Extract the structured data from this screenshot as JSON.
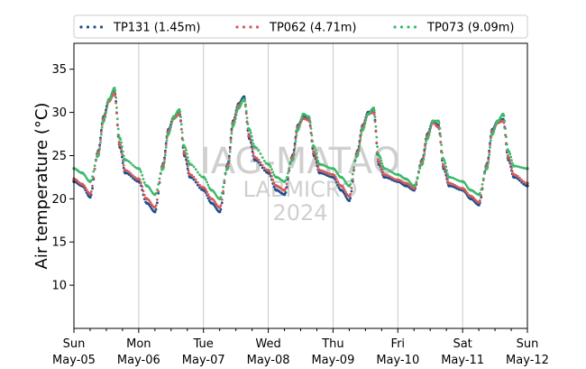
{
  "chart_data": {
    "type": "scatter",
    "ylabel": "Air temperature (°C)",
    "ylim": [
      5,
      38
    ],
    "y_ticks": [
      10,
      15,
      20,
      25,
      30,
      35
    ],
    "xlim": [
      "2024-05-05",
      "2024-05-12"
    ],
    "x_ticks": [
      {
        "day": "Sun",
        "date": "May-05",
        "x": "2024-05-05"
      },
      {
        "day": "Mon",
        "date": "May-06",
        "x": "2024-05-06"
      },
      {
        "day": "Tue",
        "date": "May-07",
        "x": "2024-05-07"
      },
      {
        "day": "Wed",
        "date": "May-08",
        "x": "2024-05-08"
      },
      {
        "day": "Thu",
        "date": "May-09",
        "x": "2024-05-09"
      },
      {
        "day": "Fri",
        "date": "May-10",
        "x": "2024-05-10"
      },
      {
        "day": "Sat",
        "date": "May-11",
        "x": "2024-05-11"
      },
      {
        "day": "Sun",
        "date": "May-12",
        "x": "2024-05-12"
      }
    ],
    "grid": "vertical",
    "legend_position": "top",
    "watermark": [
      "IAG-MATAO",
      "LABMICRO",
      "2024"
    ],
    "series": [
      {
        "name": "TP131 (1.45m)",
        "color": "#1f4e8c",
        "points": [
          [
            "2024-05-05T00:00",
            22.0
          ],
          [
            "2024-05-05T03:00",
            21.5
          ],
          [
            "2024-05-05T06:00",
            20.2
          ],
          [
            "2024-05-05T09:00",
            25.5
          ],
          [
            "2024-05-05T11:00",
            29.5
          ],
          [
            "2024-05-05T13:00",
            31.5
          ],
          [
            "2024-05-05T15:00",
            32.5
          ],
          [
            "2024-05-05T17:00",
            26.0
          ],
          [
            "2024-05-05T19:00",
            23.0
          ],
          [
            "2024-05-06T00:00",
            22.0
          ],
          [
            "2024-05-06T03:00",
            19.5
          ],
          [
            "2024-05-06T06:00",
            18.5
          ],
          [
            "2024-05-06T09:00",
            24.0
          ],
          [
            "2024-05-06T11:00",
            28.0
          ],
          [
            "2024-05-06T13:00",
            29.5
          ],
          [
            "2024-05-06T15:00",
            30.0
          ],
          [
            "2024-05-06T17:00",
            25.0
          ],
          [
            "2024-05-06T19:00",
            22.5
          ],
          [
            "2024-05-07T00:00",
            21.0
          ],
          [
            "2024-05-07T03:00",
            19.5
          ],
          [
            "2024-05-07T06:00",
            18.5
          ],
          [
            "2024-05-07T09:00",
            24.0
          ],
          [
            "2024-05-07T11:00",
            29.0
          ],
          [
            "2024-05-07T13:00",
            31.0
          ],
          [
            "2024-05-07T15:00",
            31.8
          ],
          [
            "2024-05-07T17:00",
            27.0
          ],
          [
            "2024-05-07T19:00",
            24.5
          ],
          [
            "2024-05-08T00:00",
            23.0
          ],
          [
            "2024-05-08T03:00",
            21.0
          ],
          [
            "2024-05-08T06:00",
            20.5
          ],
          [
            "2024-05-08T09:00",
            25.0
          ],
          [
            "2024-05-08T11:00",
            28.5
          ],
          [
            "2024-05-08T13:00",
            29.5
          ],
          [
            "2024-05-08T15:00",
            29.3
          ],
          [
            "2024-05-08T17:00",
            25.0
          ],
          [
            "2024-05-08T19:00",
            23.0
          ],
          [
            "2024-05-09T00:00",
            22.5
          ],
          [
            "2024-05-09T03:00",
            21.0
          ],
          [
            "2024-05-09T06:00",
            19.8
          ],
          [
            "2024-05-09T09:00",
            25.5
          ],
          [
            "2024-05-09T11:00",
            28.5
          ],
          [
            "2024-05-09T13:00",
            30.0
          ],
          [
            "2024-05-09T15:00",
            30.3
          ],
          [
            "2024-05-09T17:00",
            24.0
          ],
          [
            "2024-05-09T19:00",
            22.5
          ],
          [
            "2024-05-10T00:00",
            22.0
          ],
          [
            "2024-05-10T03:00",
            21.5
          ],
          [
            "2024-05-10T06:00",
            21.0
          ],
          [
            "2024-05-10T09:00",
            24.5
          ],
          [
            "2024-05-10T11:00",
            27.5
          ],
          [
            "2024-05-10T13:00",
            29.0
          ],
          [
            "2024-05-10T15:00",
            28.5
          ],
          [
            "2024-05-10T17:00",
            23.5
          ],
          [
            "2024-05-10T19:00",
            21.5
          ],
          [
            "2024-05-11T00:00",
            21.0
          ],
          [
            "2024-05-11T03:00",
            20.0
          ],
          [
            "2024-05-11T06:00",
            19.3
          ],
          [
            "2024-05-11T09:00",
            24.0
          ],
          [
            "2024-05-11T11:00",
            28.0
          ],
          [
            "2024-05-11T13:00",
            29.0
          ],
          [
            "2024-05-11T15:00",
            29.2
          ],
          [
            "2024-05-11T17:00",
            24.5
          ],
          [
            "2024-05-11T19:00",
            22.5
          ],
          [
            "2024-05-12T00:00",
            21.5
          ]
        ]
      },
      {
        "name": "TP062 (4.71m)",
        "color": "#d45a5a",
        "points": [
          [
            "2024-05-05T00:00",
            22.3
          ],
          [
            "2024-05-05T03:00",
            21.7
          ],
          [
            "2024-05-05T06:00",
            20.6
          ],
          [
            "2024-05-05T09:00",
            25.3
          ],
          [
            "2024-05-05T11:00",
            29.3
          ],
          [
            "2024-05-05T13:00",
            31.3
          ],
          [
            "2024-05-05T15:00",
            32.2
          ],
          [
            "2024-05-05T17:00",
            26.3
          ],
          [
            "2024-05-05T19:00",
            23.3
          ],
          [
            "2024-05-06T00:00",
            22.3
          ],
          [
            "2024-05-06T03:00",
            20.0
          ],
          [
            "2024-05-06T06:00",
            19.0
          ],
          [
            "2024-05-06T09:00",
            23.8
          ],
          [
            "2024-05-06T11:00",
            27.8
          ],
          [
            "2024-05-06T13:00",
            29.3
          ],
          [
            "2024-05-06T15:00",
            29.8
          ],
          [
            "2024-05-06T17:00",
            25.3
          ],
          [
            "2024-05-06T19:00",
            22.8
          ],
          [
            "2024-05-07T00:00",
            21.3
          ],
          [
            "2024-05-07T03:00",
            20.0
          ],
          [
            "2024-05-07T06:00",
            19.0
          ],
          [
            "2024-05-07T09:00",
            23.8
          ],
          [
            "2024-05-07T11:00",
            28.8
          ],
          [
            "2024-05-07T13:00",
            30.8
          ],
          [
            "2024-05-07T15:00",
            31.5
          ],
          [
            "2024-05-07T17:00",
            27.3
          ],
          [
            "2024-05-07T19:00",
            24.8
          ],
          [
            "2024-05-08T00:00",
            23.3
          ],
          [
            "2024-05-08T03:00",
            21.5
          ],
          [
            "2024-05-08T06:00",
            21.0
          ],
          [
            "2024-05-08T09:00",
            24.8
          ],
          [
            "2024-05-08T11:00",
            28.3
          ],
          [
            "2024-05-08T13:00",
            29.3
          ],
          [
            "2024-05-08T15:00",
            29.1
          ],
          [
            "2024-05-08T17:00",
            25.3
          ],
          [
            "2024-05-08T19:00",
            23.3
          ],
          [
            "2024-05-09T00:00",
            22.8
          ],
          [
            "2024-05-09T03:00",
            21.5
          ],
          [
            "2024-05-09T06:00",
            20.3
          ],
          [
            "2024-05-09T09:00",
            25.3
          ],
          [
            "2024-05-09T11:00",
            28.3
          ],
          [
            "2024-05-09T13:00",
            29.8
          ],
          [
            "2024-05-09T15:00",
            30.0
          ],
          [
            "2024-05-09T17:00",
            24.3
          ],
          [
            "2024-05-09T19:00",
            22.8
          ],
          [
            "2024-05-10T00:00",
            22.2
          ],
          [
            "2024-05-10T03:00",
            21.8
          ],
          [
            "2024-05-10T06:00",
            21.2
          ],
          [
            "2024-05-10T09:00",
            24.3
          ],
          [
            "2024-05-10T11:00",
            27.3
          ],
          [
            "2024-05-10T13:00",
            28.8
          ],
          [
            "2024-05-10T15:00",
            28.3
          ],
          [
            "2024-05-10T17:00",
            23.8
          ],
          [
            "2024-05-10T19:00",
            21.8
          ],
          [
            "2024-05-11T00:00",
            21.2
          ],
          [
            "2024-05-11T03:00",
            20.3
          ],
          [
            "2024-05-11T06:00",
            19.6
          ],
          [
            "2024-05-11T09:00",
            23.8
          ],
          [
            "2024-05-11T11:00",
            27.8
          ],
          [
            "2024-05-11T13:00",
            28.8
          ],
          [
            "2024-05-11T15:00",
            29.0
          ],
          [
            "2024-05-11T17:00",
            24.8
          ],
          [
            "2024-05-11T19:00",
            22.8
          ],
          [
            "2024-05-12T00:00",
            21.8
          ]
        ]
      },
      {
        "name": "TP073 (9.09m)",
        "color": "#3aba6a",
        "points": [
          [
            "2024-05-05T00:00",
            23.5
          ],
          [
            "2024-05-05T03:00",
            23.0
          ],
          [
            "2024-05-05T06:00",
            22.0
          ],
          [
            "2024-05-05T09:00",
            25.0
          ],
          [
            "2024-05-05T11:00",
            29.0
          ],
          [
            "2024-05-05T13:00",
            31.5
          ],
          [
            "2024-05-05T15:00",
            32.8
          ],
          [
            "2024-05-05T17:00",
            27.0
          ],
          [
            "2024-05-05T19:00",
            24.5
          ],
          [
            "2024-05-06T00:00",
            23.5
          ],
          [
            "2024-05-06T03:00",
            21.5
          ],
          [
            "2024-05-06T06:00",
            20.5
          ],
          [
            "2024-05-06T09:00",
            23.5
          ],
          [
            "2024-05-06T11:00",
            27.5
          ],
          [
            "2024-05-06T13:00",
            29.5
          ],
          [
            "2024-05-06T15:00",
            30.3
          ],
          [
            "2024-05-06T17:00",
            26.0
          ],
          [
            "2024-05-06T19:00",
            24.0
          ],
          [
            "2024-05-07T00:00",
            22.5
          ],
          [
            "2024-05-07T03:00",
            21.0
          ],
          [
            "2024-05-07T06:00",
            20.0
          ],
          [
            "2024-05-07T09:00",
            23.5
          ],
          [
            "2024-05-07T11:00",
            28.5
          ],
          [
            "2024-05-07T13:00",
            30.5
          ],
          [
            "2024-05-07T15:00",
            31.5
          ],
          [
            "2024-05-07T17:00",
            28.0
          ],
          [
            "2024-05-07T19:00",
            26.0
          ],
          [
            "2024-05-08T00:00",
            24.0
          ],
          [
            "2024-05-08T03:00",
            22.5
          ],
          [
            "2024-05-08T06:00",
            22.0
          ],
          [
            "2024-05-08T09:00",
            24.5
          ],
          [
            "2024-05-08T11:00",
            28.0
          ],
          [
            "2024-05-08T13:00",
            29.8
          ],
          [
            "2024-05-08T15:00",
            29.5
          ],
          [
            "2024-05-08T17:00",
            26.0
          ],
          [
            "2024-05-08T19:00",
            24.0
          ],
          [
            "2024-05-09T00:00",
            23.5
          ],
          [
            "2024-05-09T03:00",
            22.5
          ],
          [
            "2024-05-09T06:00",
            21.5
          ],
          [
            "2024-05-09T09:00",
            25.0
          ],
          [
            "2024-05-09T11:00",
            28.0
          ],
          [
            "2024-05-09T13:00",
            29.8
          ],
          [
            "2024-05-09T15:00",
            30.5
          ],
          [
            "2024-05-09T17:00",
            25.0
          ],
          [
            "2024-05-09T19:00",
            23.5
          ],
          [
            "2024-05-10T00:00",
            22.8
          ],
          [
            "2024-05-10T03:00",
            22.3
          ],
          [
            "2024-05-10T06:00",
            21.5
          ],
          [
            "2024-05-10T09:00",
            24.0
          ],
          [
            "2024-05-10T11:00",
            27.0
          ],
          [
            "2024-05-10T13:00",
            29.0
          ],
          [
            "2024-05-10T15:00",
            29.0
          ],
          [
            "2024-05-10T17:00",
            24.5
          ],
          [
            "2024-05-10T19:00",
            22.5
          ],
          [
            "2024-05-11T00:00",
            22.0
          ],
          [
            "2024-05-11T03:00",
            21.0
          ],
          [
            "2024-05-11T06:00",
            20.5
          ],
          [
            "2024-05-11T09:00",
            23.5
          ],
          [
            "2024-05-11T11:00",
            27.5
          ],
          [
            "2024-05-11T13:00",
            29.0
          ],
          [
            "2024-05-11T15:00",
            29.8
          ],
          [
            "2024-05-11T17:00",
            25.5
          ],
          [
            "2024-05-11T19:00",
            23.8
          ],
          [
            "2024-05-12T00:00",
            23.5
          ]
        ]
      }
    ]
  }
}
